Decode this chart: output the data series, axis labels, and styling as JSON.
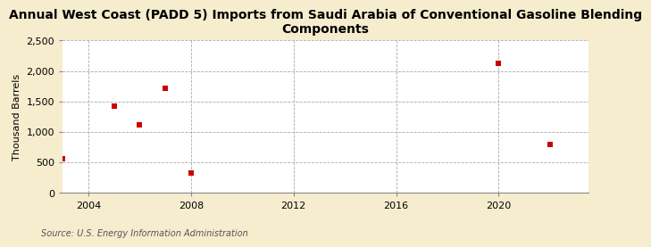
{
  "title": "Annual West Coast (PADD 5) Imports from Saudi Arabia of Conventional Gasoline Blending\nComponents",
  "ylabel": "Thousand Barrels",
  "source": "Source: U.S. Energy Information Administration",
  "background_color": "#f5edce",
  "plot_background_color": "#ffffff",
  "data_points": [
    {
      "year": 2003,
      "value": 560
    },
    {
      "year": 2005,
      "value": 1420
    },
    {
      "year": 2006,
      "value": 1120
    },
    {
      "year": 2007,
      "value": 1720
    },
    {
      "year": 2008,
      "value": 330
    },
    {
      "year": 2020,
      "value": 2130
    },
    {
      "year": 2022,
      "value": 790
    }
  ],
  "marker_color": "#cc0000",
  "marker": "s",
  "marker_size": 5,
  "xlim": [
    2003.0,
    2023.5
  ],
  "ylim": [
    0,
    2500
  ],
  "xticks": [
    2004,
    2008,
    2012,
    2016,
    2020
  ],
  "yticks": [
    0,
    500,
    1000,
    1500,
    2000,
    2500
  ],
  "ytick_labels": [
    "0",
    "500",
    "1,000",
    "1,500",
    "2,000",
    "2,500"
  ],
  "grid_color": "#aaaaaa",
  "grid_linestyle": "--",
  "grid_linewidth": 0.6,
  "title_fontsize": 10,
  "axis_label_fontsize": 8,
  "tick_fontsize": 8,
  "source_fontsize": 7
}
